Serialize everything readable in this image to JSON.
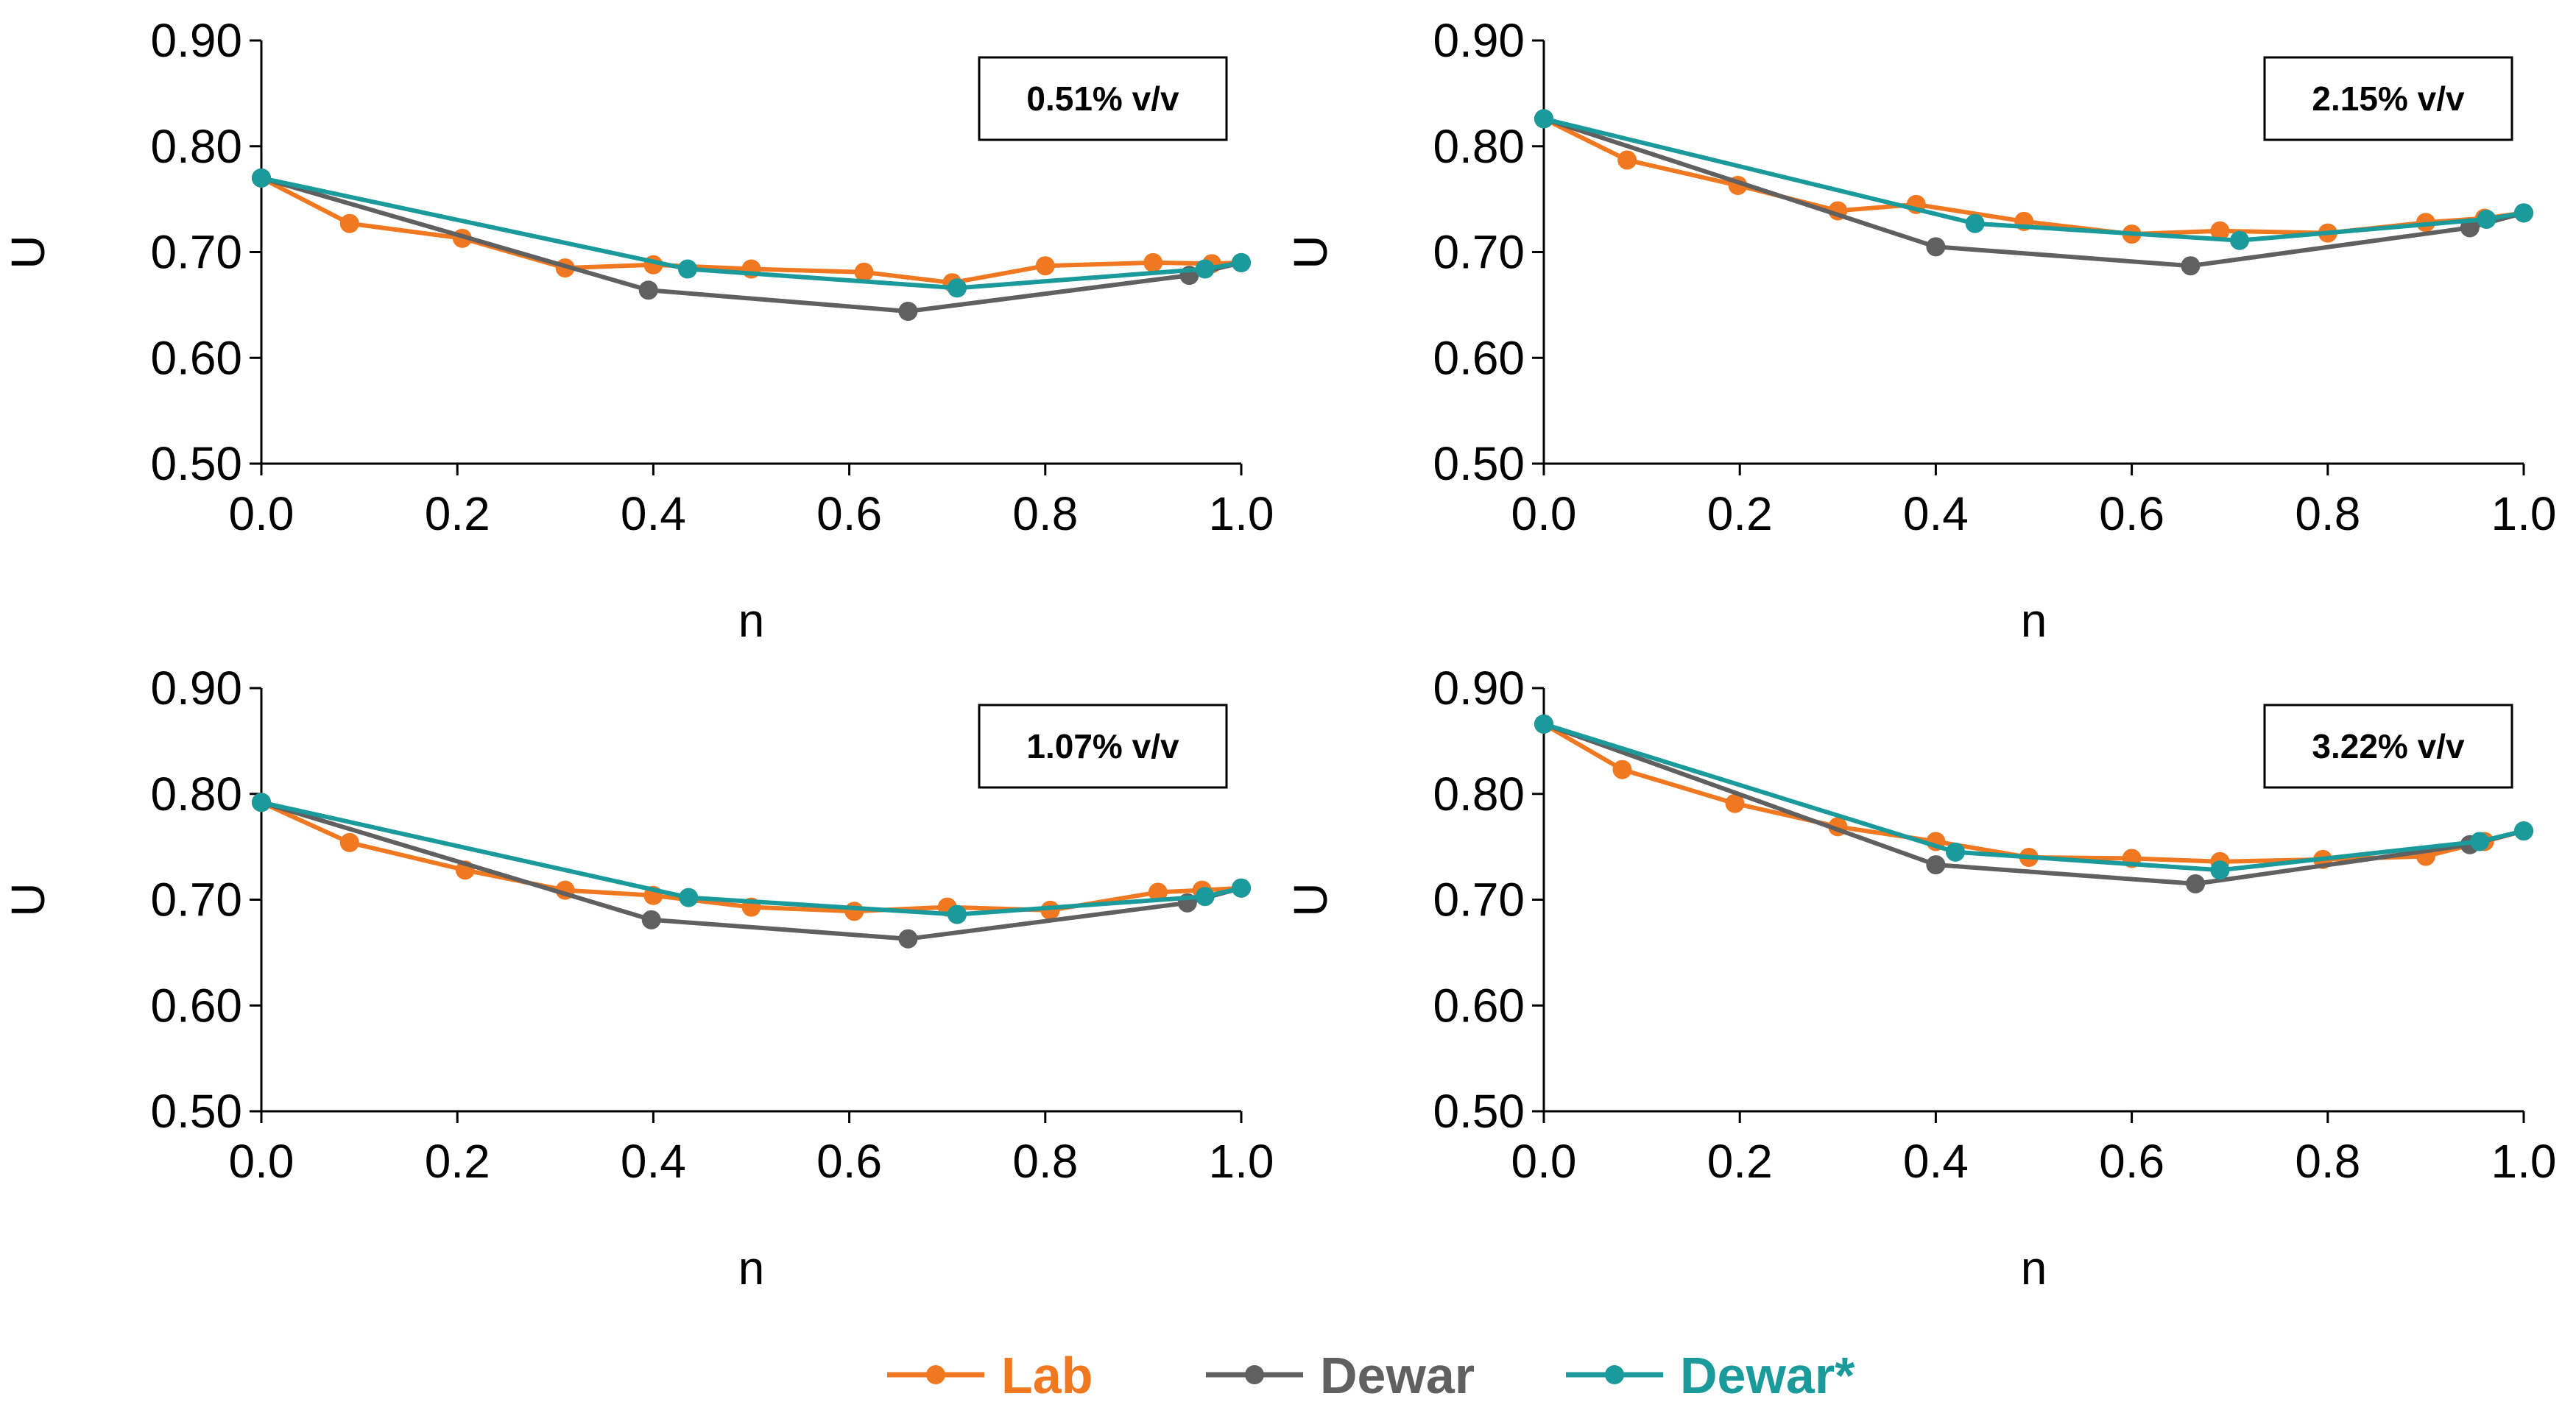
{
  "chart_data": [
    {
      "type": "line",
      "annotation": "0.51% v/v",
      "xlabel": "n",
      "ylabel": "U",
      "xlim": [
        0.0,
        1.0
      ],
      "ylim": [
        0.5,
        0.9
      ],
      "xticks": [
        "0.0",
        "0.2",
        "0.4",
        "0.6",
        "0.8",
        "1.0"
      ],
      "yticks": [
        "0.50",
        "0.60",
        "0.70",
        "0.80",
        "0.90"
      ],
      "series": [
        {
          "name": "Lab",
          "color": "#f07820",
          "x": [
            0.0,
            0.09,
            0.205,
            0.31,
            0.4,
            0.5,
            0.615,
            0.705,
            0.8,
            0.91,
            0.97,
            1.0
          ],
          "y": [
            0.77,
            0.727,
            0.713,
            0.685,
            0.688,
            0.684,
            0.681,
            0.671,
            0.687,
            0.69,
            0.689,
            0.69
          ]
        },
        {
          "name": "Dewar",
          "color": "#606060",
          "x": [
            0.0,
            0.395,
            0.66,
            0.947,
            1.0
          ],
          "y": [
            0.77,
            0.664,
            0.644,
            0.678,
            0.69
          ]
        },
        {
          "name": "Dewar*",
          "color": "#1a9a9a",
          "x": [
            0.0,
            0.435,
            0.71,
            0.963,
            1.0
          ],
          "y": [
            0.77,
            0.684,
            0.666,
            0.684,
            0.69
          ]
        }
      ]
    },
    {
      "type": "line",
      "annotation": "2.15% v/v",
      "xlabel": "n",
      "ylabel": "U",
      "xlim": [
        0.0,
        1.0
      ],
      "ylim": [
        0.5,
        0.9
      ],
      "xticks": [
        "0.0",
        "0.2",
        "0.4",
        "0.6",
        "0.8",
        "1.0"
      ],
      "yticks": [
        "0.50",
        "0.60",
        "0.70",
        "0.80",
        "0.90"
      ],
      "series": [
        {
          "name": "Lab",
          "color": "#f07820",
          "x": [
            0.0,
            0.085,
            0.198,
            0.3,
            0.38,
            0.49,
            0.6,
            0.69,
            0.8,
            0.9,
            0.96,
            1.0
          ],
          "y": [
            0.826,
            0.787,
            0.763,
            0.739,
            0.745,
            0.729,
            0.717,
            0.72,
            0.718,
            0.728,
            0.732,
            0.737
          ]
        },
        {
          "name": "Dewar",
          "color": "#606060",
          "x": [
            0.0,
            0.4,
            0.66,
            0.945,
            1.0
          ],
          "y": [
            0.826,
            0.705,
            0.687,
            0.723,
            0.737
          ]
        },
        {
          "name": "Dewar*",
          "color": "#1a9a9a",
          "x": [
            0.0,
            0.44,
            0.71,
            0.962,
            1.0
          ],
          "y": [
            0.826,
            0.727,
            0.711,
            0.731,
            0.737
          ]
        }
      ]
    },
    {
      "type": "line",
      "annotation": "1.07% v/v",
      "xlabel": "n",
      "ylabel": "U",
      "xlim": [
        0.0,
        1.0
      ],
      "ylim": [
        0.5,
        0.9
      ],
      "xticks": [
        "0.0",
        "0.2",
        "0.4",
        "0.6",
        "0.8",
        "1.0"
      ],
      "yticks": [
        "0.50",
        "0.60",
        "0.70",
        "0.80",
        "0.90"
      ],
      "series": [
        {
          "name": "Lab",
          "color": "#f07820",
          "x": [
            0.0,
            0.09,
            0.208,
            0.31,
            0.4,
            0.5,
            0.605,
            0.7,
            0.805,
            0.915,
            0.96,
            1.0
          ],
          "y": [
            0.792,
            0.754,
            0.728,
            0.709,
            0.704,
            0.693,
            0.689,
            0.693,
            0.69,
            0.707,
            0.709,
            0.711
          ]
        },
        {
          "name": "Dewar",
          "color": "#606060",
          "x": [
            0.0,
            0.398,
            0.66,
            0.945,
            1.0
          ],
          "y": [
            0.792,
            0.681,
            0.663,
            0.697,
            0.711
          ]
        },
        {
          "name": "Dewar*",
          "color": "#1a9a9a",
          "x": [
            0.0,
            0.436,
            0.71,
            0.963,
            1.0
          ],
          "y": [
            0.792,
            0.702,
            0.686,
            0.703,
            0.711
          ]
        }
      ]
    },
    {
      "type": "line",
      "annotation": "3.22% v/v",
      "xlabel": "n",
      "ylabel": "U",
      "xlim": [
        0.0,
        1.0
      ],
      "ylim": [
        0.5,
        0.9
      ],
      "xticks": [
        "0.0",
        "0.2",
        "0.4",
        "0.6",
        "0.8",
        "1.0"
      ],
      "yticks": [
        "0.50",
        "0.60",
        "0.70",
        "0.80",
        "0.90"
      ],
      "series": [
        {
          "name": "Lab",
          "color": "#f07820",
          "x": [
            0.0,
            0.08,
            0.195,
            0.3,
            0.4,
            0.495,
            0.6,
            0.69,
            0.795,
            0.9,
            0.96,
            1.0
          ],
          "y": [
            0.866,
            0.823,
            0.791,
            0.769,
            0.755,
            0.74,
            0.739,
            0.736,
            0.738,
            0.741,
            0.755,
            0.765
          ]
        },
        {
          "name": "Dewar",
          "color": "#606060",
          "x": [
            0.0,
            0.4,
            0.665,
            0.945,
            1.0
          ],
          "y": [
            0.866,
            0.733,
            0.715,
            0.752,
            0.765
          ]
        },
        {
          "name": "Dewar*",
          "color": "#1a9a9a",
          "x": [
            0.0,
            0.42,
            0.69,
            0.955,
            1.0
          ],
          "y": [
            0.866,
            0.745,
            0.728,
            0.755,
            0.765
          ]
        }
      ]
    }
  ],
  "legend": [
    {
      "label": "Lab",
      "color": "#f07820"
    },
    {
      "label": "Dewar",
      "color": "#606060"
    },
    {
      "label": "Dewar*",
      "color": "#1a9a9a"
    }
  ]
}
